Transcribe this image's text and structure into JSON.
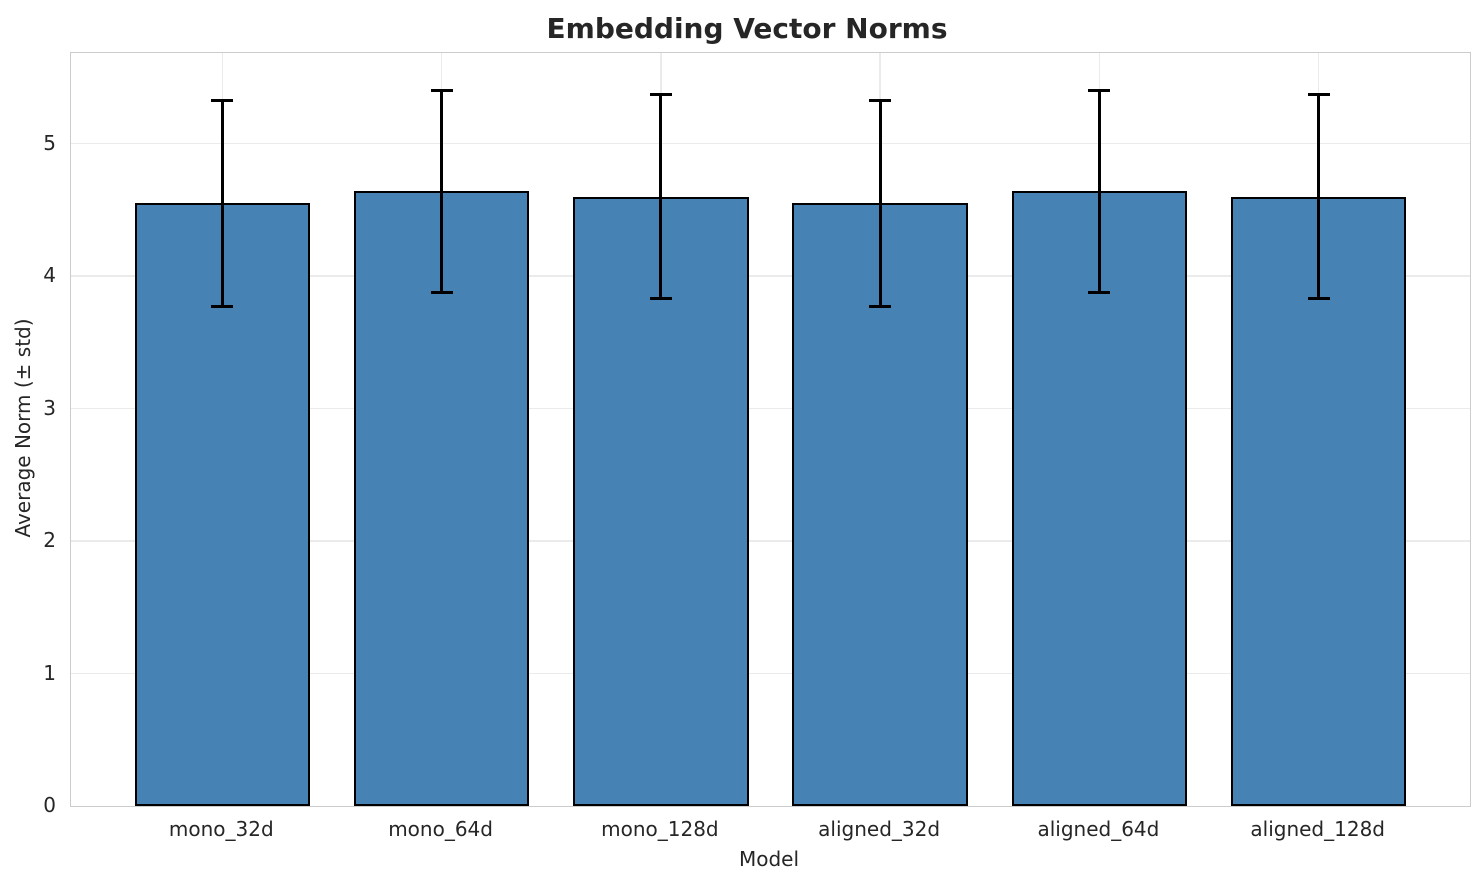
{
  "chart_data": {
    "type": "bar",
    "title": "Embedding Vector Norms",
    "xlabel": "Model",
    "ylabel": "Average Norm (± std)",
    "categories": [
      "mono_32d",
      "mono_64d",
      "mono_128d",
      "aligned_32d",
      "aligned_64d",
      "aligned_128d"
    ],
    "series": [
      {
        "name": "Average Norm",
        "values": [
          4.55,
          4.64,
          4.6,
          4.55,
          4.64,
          4.6
        ],
        "errors": [
          0.78,
          0.76,
          0.77,
          0.78,
          0.76,
          0.77
        ]
      }
    ],
    "yticks": [
      0,
      1,
      2,
      3,
      4,
      5
    ],
    "ylim": [
      0,
      5.685
    ],
    "xlim": [
      -0.69,
      5.69
    ],
    "bar_width_units": 0.8,
    "grid": true,
    "legend": "none",
    "style": {
      "bar_fill": "#4682b4",
      "bar_edge": "#000000",
      "error_color": "#000000",
      "grid_color": "#ebebeb",
      "spine_color": "#cccccc",
      "text_color": "#262626",
      "background": "#ffffff"
    }
  }
}
